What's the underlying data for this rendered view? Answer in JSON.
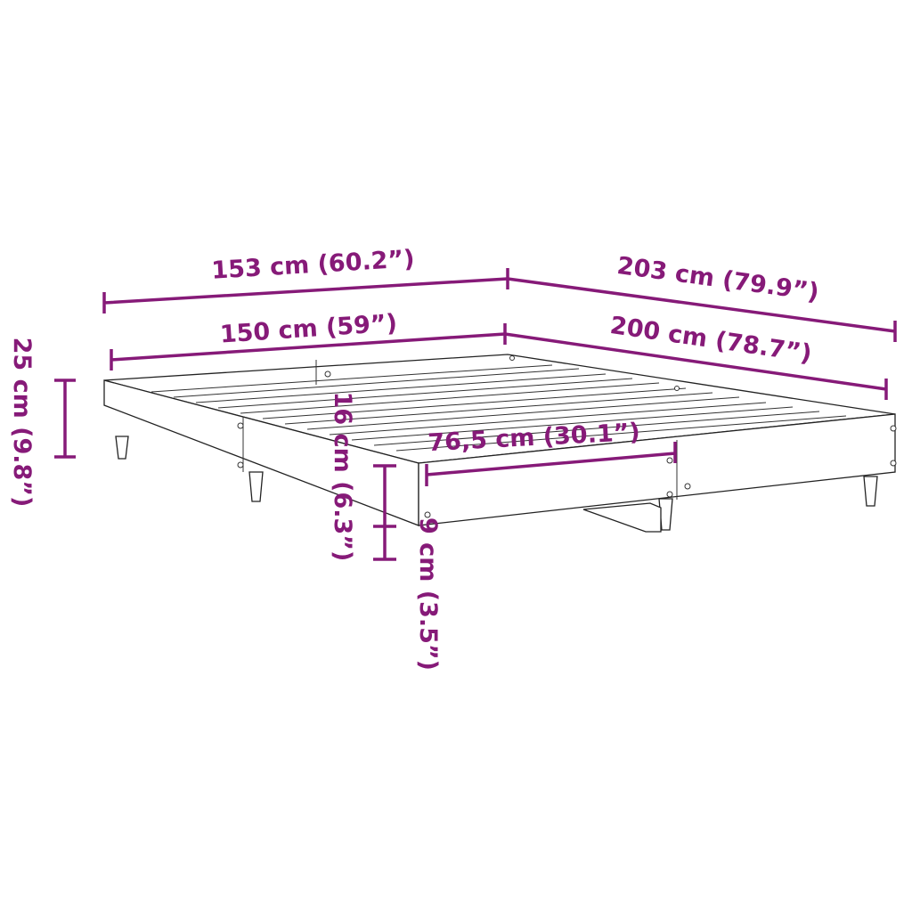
{
  "accent_color": "#861a78",
  "dimensions": {
    "outer_width": "153 cm (60.2”)",
    "outer_length": "203 cm (79.9”)",
    "inner_width": "150 cm (59”)",
    "inner_length": "200 cm (78.7”)",
    "total_height": "25 cm (9.8”)",
    "frame_height": "16 cm (6.3”)",
    "leg_clearance": "9 cm (3.5”)",
    "half_width": "76,5 cm (30.1”)"
  }
}
